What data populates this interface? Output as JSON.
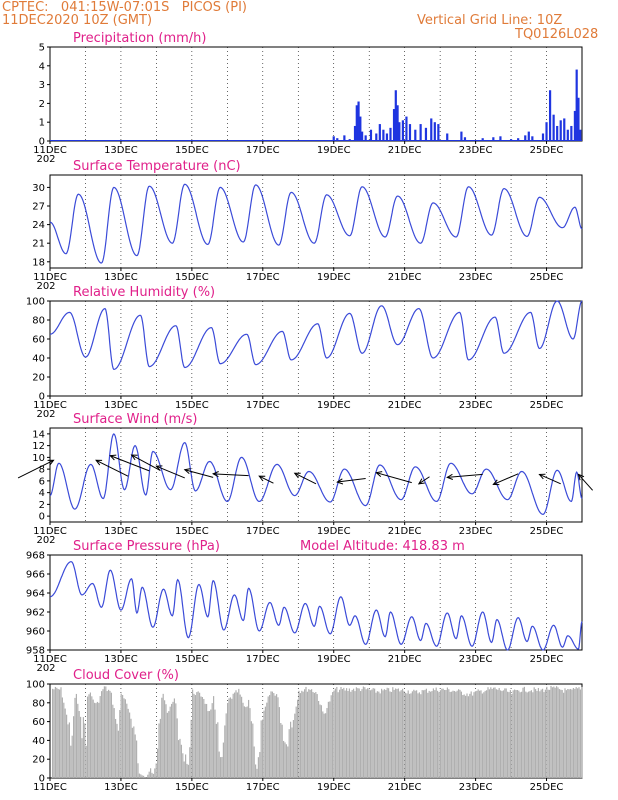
{
  "header": {
    "line1": "CPTEC:   041:15W-07:01S   PICOS (PI)",
    "line2": "11DEC2020 10Z (GMT)",
    "grid_note": "Vertical Grid Line: 10Z",
    "code": "TQ0126L028"
  },
  "colors": {
    "header": "#e07b39",
    "title": "#e0208a",
    "line": "#3b4bd8",
    "bar": "#1f35e0",
    "cloud": "#b0b0b0",
    "arrow": "#000000",
    "grid": "#000000"
  },
  "x_labels": [
    "11DEC",
    "13DEC",
    "15DEC",
    "17DEC",
    "19DEC",
    "21DEC",
    "23DEC",
    "25DEC"
  ],
  "year_stub": "202",
  "chart_data": [
    {
      "id": "precip",
      "type": "bar",
      "title": "Precipitation (mm/h)",
      "ylim": [
        0,
        5
      ],
      "yticks": [
        0,
        1,
        2,
        3,
        4,
        5
      ],
      "x_start_day": 11.0,
      "x_end_day": 26.0,
      "points": [
        [
          18.9,
          0.05
        ],
        [
          19.0,
          0.25
        ],
        [
          19.1,
          0.15
        ],
        [
          19.3,
          0.3
        ],
        [
          19.45,
          0.1
        ],
        [
          19.6,
          0.8
        ],
        [
          19.65,
          1.9
        ],
        [
          19.7,
          2.1
        ],
        [
          19.75,
          1.3
        ],
        [
          19.8,
          0.5
        ],
        [
          19.9,
          0.3
        ],
        [
          20.05,
          0.6
        ],
        [
          20.2,
          0.4
        ],
        [
          20.3,
          0.9
        ],
        [
          20.4,
          0.6
        ],
        [
          20.5,
          0.4
        ],
        [
          20.6,
          0.7
        ],
        [
          20.7,
          1.7
        ],
        [
          20.75,
          2.7
        ],
        [
          20.8,
          1.9
        ],
        [
          20.85,
          1.0
        ],
        [
          20.95,
          1.1
        ],
        [
          21.05,
          1.3
        ],
        [
          21.15,
          0.9
        ],
        [
          21.3,
          0.6
        ],
        [
          21.45,
          0.9
        ],
        [
          21.6,
          0.7
        ],
        [
          21.75,
          1.2
        ],
        [
          21.85,
          1.0
        ],
        [
          21.95,
          0.9
        ],
        [
          22.2,
          0.4
        ],
        [
          22.6,
          0.5
        ],
        [
          22.7,
          0.2
        ],
        [
          23.2,
          0.15
        ],
        [
          23.5,
          0.2
        ],
        [
          23.7,
          0.25
        ],
        [
          24.0,
          0.1
        ],
        [
          24.2,
          0.15
        ],
        [
          24.4,
          0.3
        ],
        [
          24.5,
          0.5
        ],
        [
          24.6,
          0.25
        ],
        [
          24.9,
          0.4
        ],
        [
          25.0,
          1.0
        ],
        [
          25.1,
          2.7
        ],
        [
          25.2,
          1.4
        ],
        [
          25.3,
          0.8
        ],
        [
          25.4,
          1.1
        ],
        [
          25.5,
          1.2
        ],
        [
          25.6,
          0.6
        ],
        [
          25.7,
          0.8
        ],
        [
          25.8,
          1.6
        ],
        [
          25.85,
          3.8
        ],
        [
          25.9,
          2.3
        ],
        [
          25.95,
          0.6
        ]
      ]
    },
    {
      "id": "temp",
      "type": "line",
      "title": "Surface Temperature (nC)",
      "ylim": [
        17,
        32
      ],
      "yticks": [
        18,
        21,
        24,
        27,
        30
      ],
      "x_start_day": 11.0,
      "x_end_day": 26.0,
      "peaks": [
        [
          11.8,
          28.9
        ],
        [
          12.8,
          30.0
        ],
        [
          13.8,
          30.2
        ],
        [
          14.8,
          30.5
        ],
        [
          15.8,
          30.0
        ],
        [
          16.8,
          30.4
        ],
        [
          17.8,
          29.2
        ],
        [
          18.8,
          28.8
        ],
        [
          19.8,
          30.1
        ],
        [
          20.8,
          28.6
        ],
        [
          21.8,
          27.5
        ],
        [
          22.8,
          30.1
        ],
        [
          23.8,
          29.8
        ],
        [
          24.8,
          28.4
        ],
        [
          25.8,
          26.8
        ]
      ],
      "troughs": [
        [
          11.0,
          24.4
        ],
        [
          11.45,
          19.3
        ],
        [
          12.45,
          17.8
        ],
        [
          13.45,
          19.0
        ],
        [
          14.45,
          21.0
        ],
        [
          15.45,
          20.8
        ],
        [
          16.45,
          21.2
        ],
        [
          17.45,
          20.7
        ],
        [
          18.45,
          21.0
        ],
        [
          19.45,
          22.2
        ],
        [
          20.45,
          22.0
        ],
        [
          21.45,
          21.0
        ],
        [
          22.45,
          22.0
        ],
        [
          23.45,
          22.3
        ],
        [
          24.45,
          22.1
        ],
        [
          25.45,
          23.5
        ],
        [
          26.0,
          23.3
        ]
      ]
    },
    {
      "id": "rh",
      "type": "line",
      "title": "Relative Humidity (%)",
      "ylim": [
        0,
        100
      ],
      "yticks": [
        0,
        20,
        40,
        60,
        80,
        100
      ],
      "x_start_day": 11.0,
      "x_end_day": 26.0,
      "peaks": [
        [
          11.0,
          65
        ],
        [
          11.55,
          88
        ],
        [
          12.55,
          92
        ],
        [
          13.55,
          85
        ],
        [
          14.55,
          74
        ],
        [
          15.55,
          72
        ],
        [
          16.55,
          65
        ],
        [
          17.55,
          68
        ],
        [
          18.55,
          76
        ],
        [
          19.45,
          87
        ],
        [
          20.35,
          95
        ],
        [
          21.4,
          92
        ],
        [
          22.55,
          88
        ],
        [
          23.55,
          83
        ],
        [
          24.55,
          88
        ],
        [
          25.3,
          100
        ],
        [
          26.0,
          100
        ]
      ],
      "troughs": [
        [
          12.0,
          41
        ],
        [
          12.8,
          28
        ],
        [
          13.8,
          31
        ],
        [
          14.8,
          30
        ],
        [
          15.8,
          34
        ],
        [
          16.8,
          33
        ],
        [
          17.8,
          38
        ],
        [
          18.8,
          40
        ],
        [
          19.8,
          45
        ],
        [
          20.8,
          54
        ],
        [
          21.8,
          40
        ],
        [
          22.8,
          38
        ],
        [
          23.8,
          45
        ],
        [
          24.8,
          50
        ],
        [
          25.75,
          60
        ]
      ]
    },
    {
      "id": "wind",
      "type": "line",
      "title": "Surface Wind (m/s)",
      "ylim": [
        -1,
        15
      ],
      "yticks": [
        0,
        2,
        4,
        6,
        8,
        10,
        12,
        14
      ],
      "x_start_day": 11.0,
      "x_end_day": 26.0,
      "peaks": [
        [
          11.25,
          9.0
        ],
        [
          12.15,
          8.8
        ],
        [
          12.8,
          14.0
        ],
        [
          13.4,
          12.0
        ],
        [
          13.9,
          11.0
        ],
        [
          14.8,
          12.5
        ],
        [
          15.5,
          9.3
        ],
        [
          16.4,
          10.0
        ],
        [
          17.4,
          8.8
        ],
        [
          18.3,
          7.6
        ],
        [
          19.3,
          8.0
        ],
        [
          20.3,
          8.7
        ],
        [
          21.3,
          8.4
        ],
        [
          22.3,
          9.0
        ],
        [
          23.3,
          8.0
        ],
        [
          24.3,
          7.6
        ],
        [
          25.3,
          7.8
        ],
        [
          25.85,
          7.5
        ]
      ],
      "troughs": [
        [
          11.0,
          3.5
        ],
        [
          11.7,
          1.2
        ],
        [
          12.5,
          3.0
        ],
        [
          13.1,
          4.5
        ],
        [
          13.7,
          3.6
        ],
        [
          14.4,
          4.5
        ],
        [
          15.1,
          4.3
        ],
        [
          16.0,
          2.5
        ],
        [
          16.9,
          2.5
        ],
        [
          17.9,
          3.5
        ],
        [
          18.9,
          2.4
        ],
        [
          19.9,
          1.8
        ],
        [
          20.9,
          2.8
        ],
        [
          21.9,
          2.5
        ],
        [
          22.9,
          3.8
        ],
        [
          23.9,
          2.8
        ],
        [
          24.9,
          0.3
        ],
        [
          25.7,
          2.5
        ],
        [
          26.0,
          3.0
        ]
      ],
      "arrows": [
        [
          11.1,
          9.5,
          10.1,
          6.5
        ],
        [
          12.3,
          9.5,
          13.2,
          6.8
        ],
        [
          12.7,
          10.3,
          13.8,
          7.7
        ],
        [
          13.3,
          10.4,
          14.1,
          7.8
        ],
        [
          14.0,
          8.5,
          14.8,
          6.5
        ],
        [
          14.8,
          7.9,
          15.6,
          6.6
        ],
        [
          15.6,
          7.2,
          16.6,
          6.9
        ],
        [
          16.9,
          6.8,
          17.3,
          5.6
        ],
        [
          17.9,
          7.3,
          18.5,
          5.5
        ],
        [
          19.1,
          5.8,
          19.9,
          6.4
        ],
        [
          20.2,
          7.4,
          21.2,
          5.7
        ],
        [
          21.4,
          5.5,
          21.7,
          6.7
        ],
        [
          22.2,
          6.6,
          23.2,
          7.1
        ],
        [
          23.5,
          5.4,
          24.2,
          7.2
        ],
        [
          24.8,
          7.1,
          25.4,
          5.5
        ],
        [
          25.9,
          7.1,
          26.3,
          4.4
        ]
      ]
    },
    {
      "id": "pres",
      "type": "line",
      "title": "Surface Pressure (hPa)",
      "subtitle": "Model Altitude: 418.83 m",
      "ylim": [
        958,
        968
      ],
      "yticks": [
        958,
        960,
        962,
        964,
        966,
        968
      ],
      "x_start_day": 11.0,
      "x_end_day": 26.0,
      "peaks": [
        [
          11.6,
          967.3
        ],
        [
          12.2,
          965.0
        ],
        [
          12.7,
          966.4
        ],
        [
          13.3,
          965.5
        ],
        [
          13.6,
          964.6
        ],
        [
          14.2,
          964.4
        ],
        [
          14.6,
          965.4
        ],
        [
          15.2,
          964.9
        ],
        [
          15.6,
          965.3
        ],
        [
          16.2,
          963.8
        ],
        [
          16.6,
          964.5
        ],
        [
          17.2,
          963.0
        ],
        [
          17.6,
          962.5
        ],
        [
          18.2,
          962.9
        ],
        [
          18.6,
          962.6
        ],
        [
          19.2,
          963.6
        ],
        [
          19.6,
          961.6
        ],
        [
          20.2,
          962.2
        ],
        [
          20.6,
          962.0
        ],
        [
          21.2,
          961.5
        ],
        [
          21.6,
          960.8
        ],
        [
          22.2,
          961.9
        ],
        [
          22.6,
          961.6
        ],
        [
          23.2,
          962.0
        ],
        [
          23.6,
          961.2
        ],
        [
          24.2,
          961.4
        ],
        [
          24.6,
          960.5
        ],
        [
          25.2,
          960.6
        ],
        [
          25.6,
          959.5
        ]
      ],
      "troughs": [
        [
          11.0,
          963.6
        ],
        [
          11.9,
          963.8
        ],
        [
          12.45,
          962.5
        ],
        [
          13.0,
          962.2
        ],
        [
          13.45,
          961.9
        ],
        [
          13.9,
          960.4
        ],
        [
          14.45,
          961.6
        ],
        [
          14.9,
          959.3
        ],
        [
          15.45,
          961.5
        ],
        [
          15.9,
          960.1
        ],
        [
          16.45,
          961.1
        ],
        [
          16.9,
          960.0
        ],
        [
          17.45,
          960.6
        ],
        [
          17.9,
          959.8
        ],
        [
          18.45,
          960.5
        ],
        [
          18.9,
          959.7
        ],
        [
          19.45,
          960.6
        ],
        [
          19.9,
          958.6
        ],
        [
          20.45,
          959.4
        ],
        [
          20.9,
          958.6
        ],
        [
          21.45,
          959.0
        ],
        [
          21.9,
          958.4
        ],
        [
          22.45,
          959.2
        ],
        [
          22.9,
          958.4
        ],
        [
          23.45,
          958.8
        ],
        [
          23.9,
          958.0
        ],
        [
          24.45,
          958.9
        ],
        [
          24.9,
          958.0
        ],
        [
          25.45,
          958.3
        ],
        [
          25.9,
          958.1
        ],
        [
          26.0,
          961.0
        ]
      ]
    },
    {
      "id": "cloud",
      "type": "area",
      "title": "Cloud Cover (%)",
      "ylim": [
        0,
        100
      ],
      "yticks": [
        0,
        20,
        40,
        60,
        80,
        100
      ],
      "x_start_day": 11.0,
      "x_end_day": 26.0,
      "points": [
        [
          11.0,
          98
        ],
        [
          11.3,
          97
        ],
        [
          11.5,
          60
        ],
        [
          11.6,
          40
        ],
        [
          11.7,
          96
        ],
        [
          11.9,
          55
        ],
        [
          12.0,
          40
        ],
        [
          12.05,
          97
        ],
        [
          12.3,
          80
        ],
        [
          12.5,
          100
        ],
        [
          12.7,
          94
        ],
        [
          12.9,
          55
        ],
        [
          13.0,
          96
        ],
        [
          13.2,
          75
        ],
        [
          13.4,
          40
        ],
        [
          13.5,
          5
        ],
        [
          13.7,
          0
        ],
        [
          13.8,
          10
        ],
        [
          13.9,
          5
        ],
        [
          14.0,
          15
        ],
        [
          14.15,
          98
        ],
        [
          14.3,
          70
        ],
        [
          14.5,
          90
        ],
        [
          14.7,
          30
        ],
        [
          14.9,
          10
        ],
        [
          15.0,
          95
        ],
        [
          15.3,
          90
        ],
        [
          15.5,
          70
        ],
        [
          15.6,
          88
        ],
        [
          15.8,
          20
        ],
        [
          16.0,
          85
        ],
        [
          16.3,
          96
        ],
        [
          16.5,
          75
        ],
        [
          16.6,
          88
        ],
        [
          16.8,
          5
        ],
        [
          17.0,
          70
        ],
        [
          17.2,
          95
        ],
        [
          17.4,
          92
        ],
        [
          17.6,
          30
        ],
        [
          17.7,
          35
        ],
        [
          18.0,
          96
        ],
        [
          18.3,
          98
        ],
        [
          18.5,
          94
        ],
        [
          18.7,
          70
        ],
        [
          19.0,
          97
        ],
        [
          19.4,
          97
        ],
        [
          19.8,
          98
        ],
        [
          20.2,
          95
        ],
        [
          20.7,
          97
        ],
        [
          21.0,
          96
        ],
        [
          21.3,
          94
        ],
        [
          21.6,
          96
        ],
        [
          21.8,
          97
        ],
        [
          22.2,
          97
        ],
        [
          22.5,
          95
        ],
        [
          22.8,
          92
        ],
        [
          23.2,
          96
        ],
        [
          23.5,
          98
        ],
        [
          23.8,
          96
        ],
        [
          24.0,
          93
        ],
        [
          24.2,
          97
        ],
        [
          24.5,
          97
        ],
        [
          24.8,
          96
        ],
        [
          25.0,
          98
        ],
        [
          25.3,
          98
        ],
        [
          25.6,
          95
        ],
        [
          25.8,
          97
        ],
        [
          26.0,
          100
        ]
      ]
    }
  ]
}
